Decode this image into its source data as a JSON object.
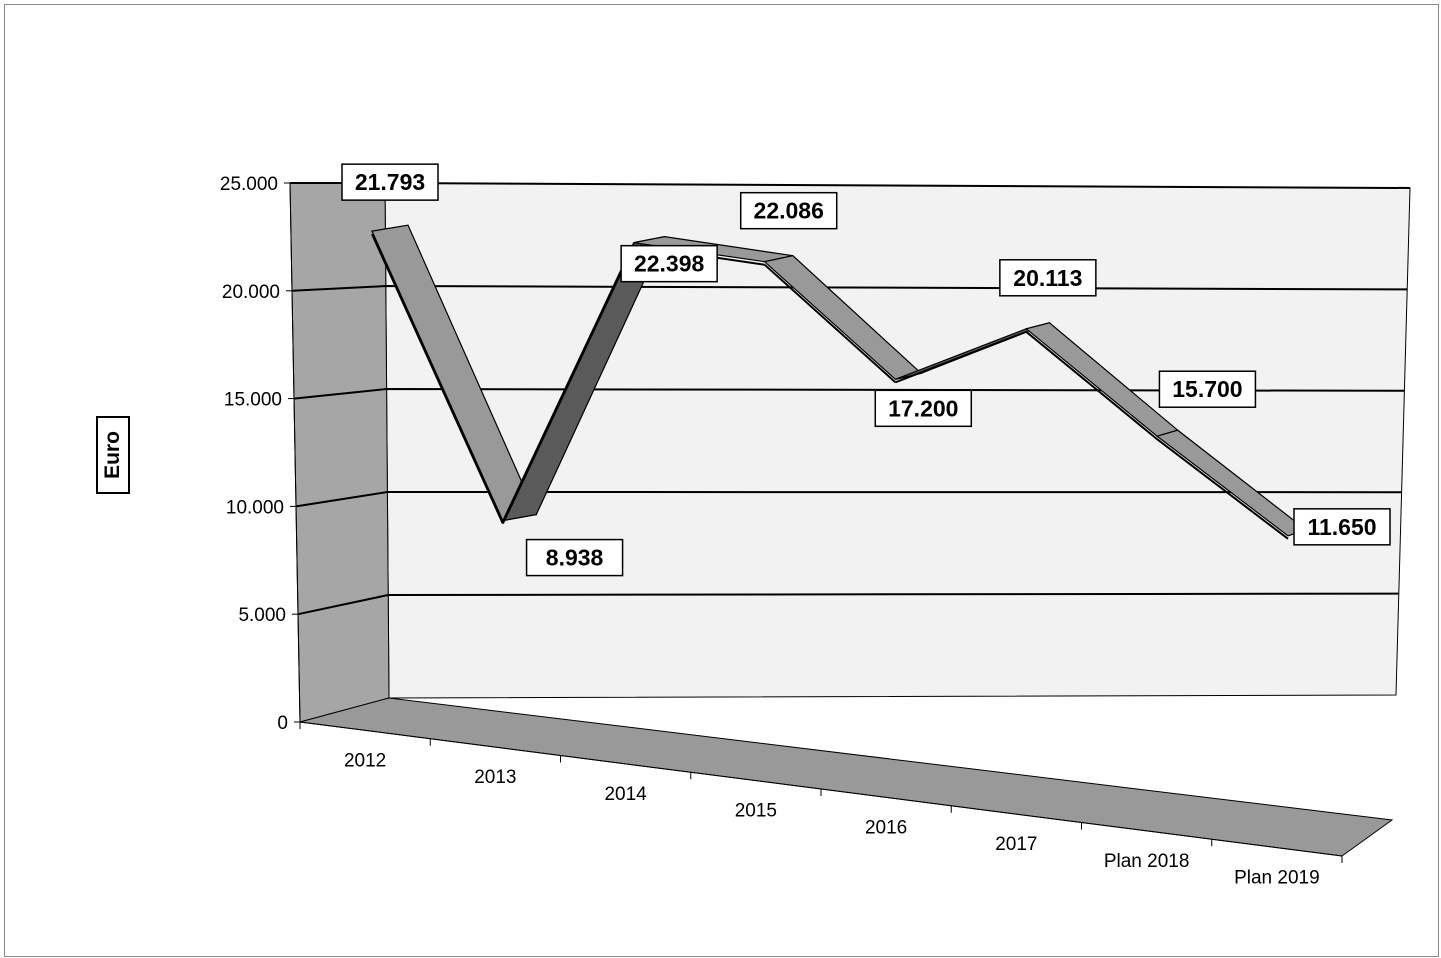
{
  "chart_data": {
    "type": "line",
    "title": "",
    "xlabel": "",
    "ylabel": "Euro",
    "ylim": [
      0,
      25000
    ],
    "yticks": [
      0,
      5000,
      10000,
      15000,
      20000,
      25000
    ],
    "ytick_labels": [
      "0",
      "5.000",
      "10.000",
      "15.000",
      "20.000",
      "25.000"
    ],
    "categories": [
      "2012",
      "2013",
      "2014",
      "2015",
      "2016",
      "2017",
      "Plan 2018",
      "Plan 2019"
    ],
    "values": [
      21793,
      8938,
      22398,
      22086,
      17200,
      20113,
      15700,
      11650
    ],
    "data_labels": [
      "21.793",
      "8.938",
      "22.398",
      "22.086",
      "17.200",
      "20.113",
      "15.700",
      "11.650"
    ],
    "style": "3d-ribbon",
    "grid": true,
    "legend": "none"
  }
}
